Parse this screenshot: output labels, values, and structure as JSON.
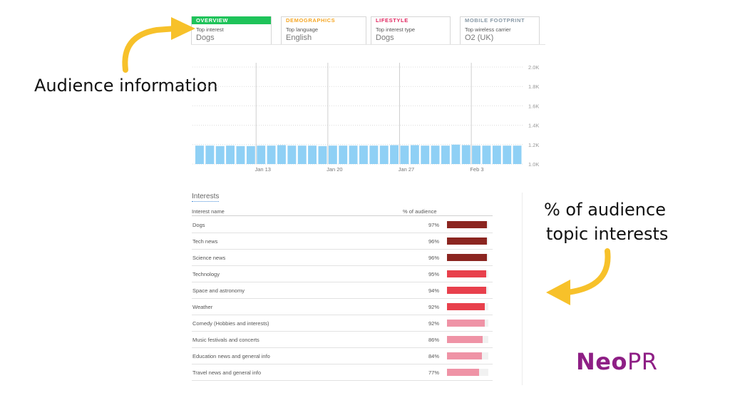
{
  "tabs": [
    {
      "title": "OVERVIEW",
      "label": "Top interest",
      "value": "Dogs",
      "color": "#1fc35a",
      "active": true
    },
    {
      "title": "DEMOGRAPHICS",
      "label": "Top language",
      "value": "English",
      "color": "#f5a623",
      "active": false
    },
    {
      "title": "LIFESTYLE",
      "label": "Top interest type",
      "value": "Dogs",
      "color": "#e0245e",
      "active": false
    },
    {
      "title": "MOBILE FOOTPRINT",
      "label": "Top wireless carrier",
      "value": "O2 (UK)",
      "color": "#8899a6",
      "active": false
    }
  ],
  "annotations": {
    "audience_info": "Audience information",
    "interests_line1": "% of audience",
    "interests_line2": "topic interests"
  },
  "chart_data": {
    "type": "bar",
    "bar_color": "#8fd0f5",
    "y_ticks": [
      "2.0K",
      "1.8K",
      "1.6K",
      "1.4K",
      "1.2K",
      "1.0K"
    ],
    "x_ticks": [
      "Jan 13",
      "Jan 20",
      "Jan 27",
      "Feb 3"
    ],
    "values": [
      1190,
      1190,
      1185,
      1190,
      1185,
      1185,
      1190,
      1190,
      1195,
      1190,
      1190,
      1190,
      1185,
      1190,
      1190,
      1190,
      1190,
      1190,
      1190,
      1195,
      1190,
      1195,
      1190,
      1190,
      1190,
      1200,
      1195,
      1190,
      1190,
      1190,
      1190,
      1190
    ],
    "ylim": [
      1000,
      2000
    ]
  },
  "interests": {
    "title": "Interests",
    "col_name": "Interest name",
    "col_pct": "% of audience",
    "rows": [
      {
        "name": "Dogs",
        "pct": "97%",
        "value": 0.97,
        "color": "#8b2520"
      },
      {
        "name": "Tech news",
        "pct": "96%",
        "value": 0.96,
        "color": "#8b2520"
      },
      {
        "name": "Science news",
        "pct": "96%",
        "value": 0.96,
        "color": "#8b2520"
      },
      {
        "name": "Technology",
        "pct": "95%",
        "value": 0.95,
        "color": "#e8404c"
      },
      {
        "name": "Space and astronomy",
        "pct": "94%",
        "value": 0.94,
        "color": "#e8404c"
      },
      {
        "name": "Weather",
        "pct": "92%",
        "value": 0.92,
        "color": "#e8404c"
      },
      {
        "name": "Comedy (Hobbies and interests)",
        "pct": "92%",
        "value": 0.92,
        "color": "#ef93a6"
      },
      {
        "name": "Music festivals and concerts",
        "pct": "86%",
        "value": 0.86,
        "color": "#ef93a6"
      },
      {
        "name": "Education news and general info",
        "pct": "84%",
        "value": 0.84,
        "color": "#ef93a6"
      },
      {
        "name": "Travel news and general info",
        "pct": "77%",
        "value": 0.77,
        "color": "#ef93a6"
      }
    ]
  },
  "logo": {
    "part1": "Neo",
    "part2": "PR",
    "color": "#8e1f85"
  }
}
